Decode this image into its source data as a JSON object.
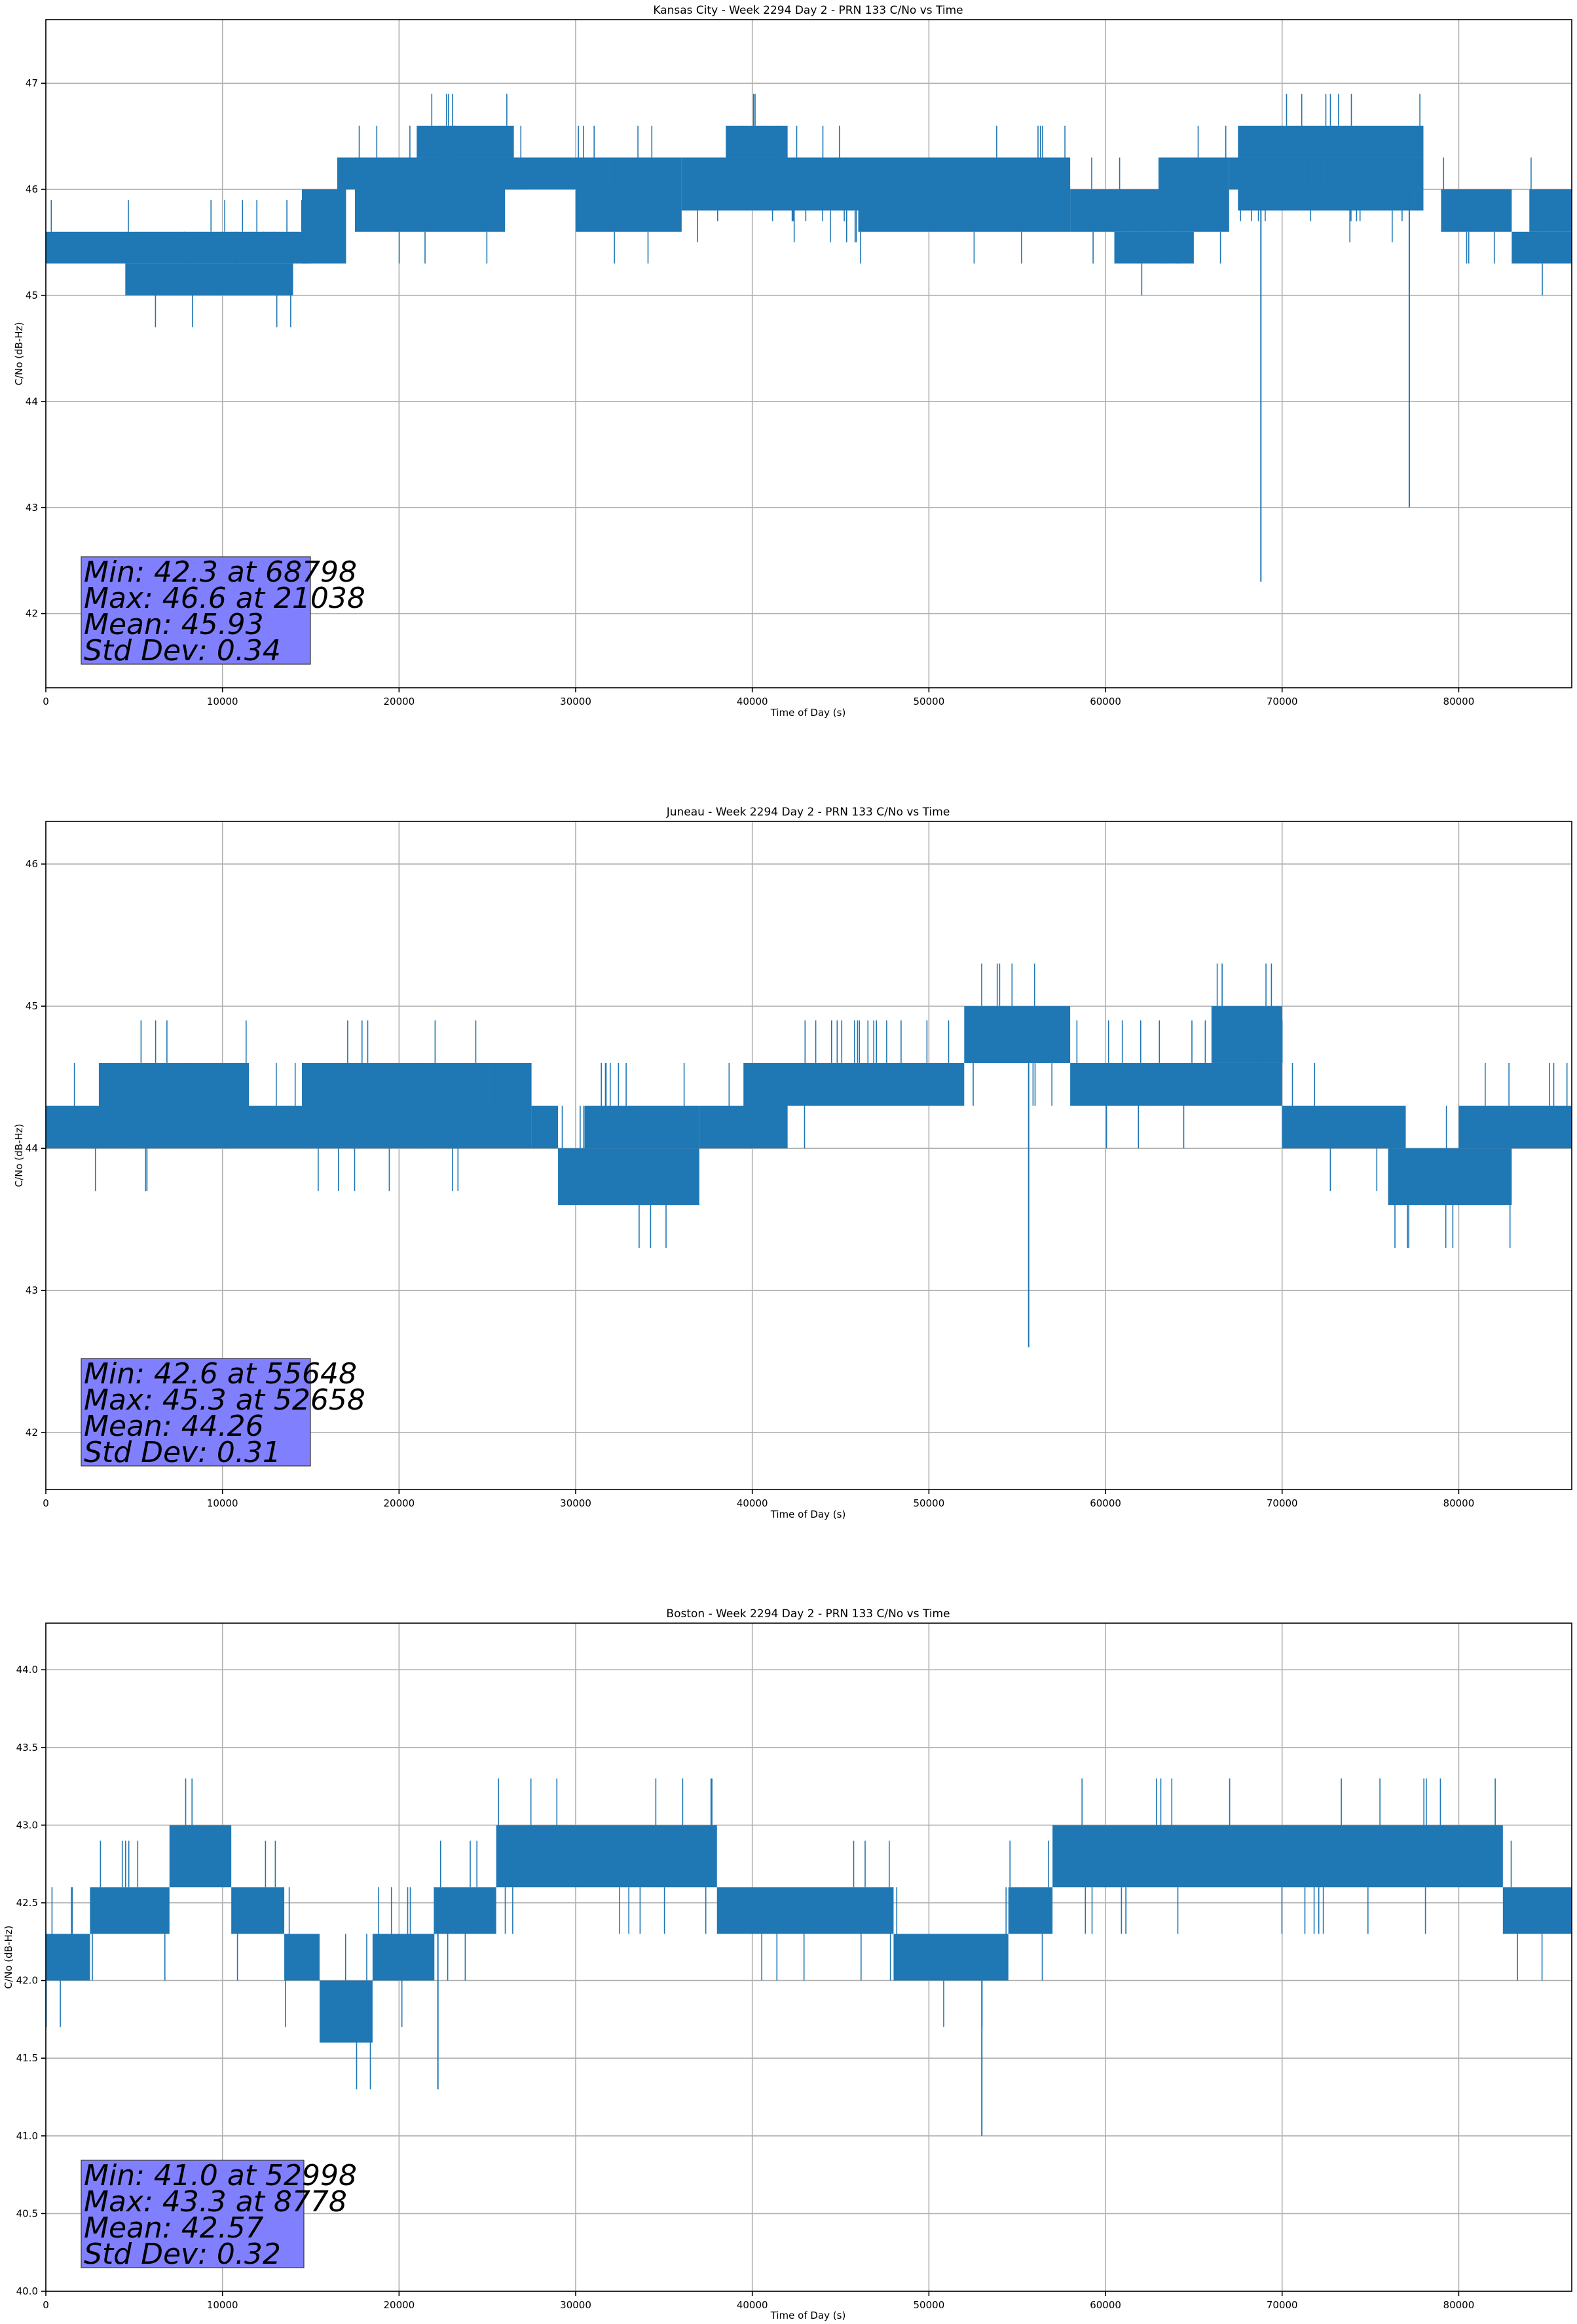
{
  "chart_data": [
    {
      "type": "line",
      "title": "Kansas City - Week 2294 Day 2 - PRN 133 C/No vs Time",
      "xlabel": "Time of Day (s)",
      "ylabel": "C/No (dB-Hz)",
      "xlim": [
        0,
        86400
      ],
      "ylim": [
        41.3,
        47.6
      ],
      "xticks": [
        0,
        10000,
        20000,
        30000,
        40000,
        50000,
        60000,
        70000,
        80000
      ],
      "yticks": [
        42,
        43,
        44,
        45,
        46,
        47
      ],
      "ytick_labels": [
        "42",
        "43",
        "44",
        "45",
        "46",
        "47"
      ],
      "grid": true,
      "series_color": "#1f77b4",
      "series": [
        {
          "segments": [
            [
              0,
              15000,
              45.3,
              45.6
            ],
            [
              4500,
              14000,
              45.0,
              45.3
            ],
            [
              14500,
              17000,
              45.3,
              46.0
            ],
            [
              16500,
              27000,
              46.0,
              46.3
            ],
            [
              17500,
              26000,
              45.6,
              46.0
            ],
            [
              21000,
              26500,
              46.3,
              46.6
            ],
            [
              26000,
              36000,
              46.0,
              46.3
            ],
            [
              30000,
              36000,
              45.6,
              46.0
            ],
            [
              36000,
              46000,
              46.0,
              46.3
            ],
            [
              36000,
              46000,
              45.8,
              46.0
            ],
            [
              38500,
              42000,
              46.3,
              46.6
            ],
            [
              46000,
              58000,
              45.6,
              46.3
            ],
            [
              58000,
              67000,
              45.6,
              46.0
            ],
            [
              60500,
              65000,
              45.3,
              45.6
            ],
            [
              63000,
              67000,
              46.0,
              46.3
            ],
            [
              67000,
              78000,
              46.0,
              46.3
            ],
            [
              67500,
              78000,
              45.8,
              46.0
            ],
            [
              67500,
              78000,
              46.3,
              46.6
            ],
            [
              79000,
              83000,
              45.6,
              46.0
            ],
            [
              83000,
              86400,
              45.3,
              45.6
            ],
            [
              84000,
              86400,
              45.6,
              46.0
            ]
          ],
          "spikes": [
            [
              68798,
              42.3
            ],
            [
              77200,
              43.0
            ]
          ]
        }
      ],
      "stats": {
        "min": "Min: 42.3 at 68798",
        "max": "Max: 46.6 at 21038",
        "mean": "Mean: 45.93",
        "std": "Std Dev: 0.34"
      }
    },
    {
      "type": "line",
      "title": "Juneau - Week 2294 Day 2 - PRN 133 C/No vs Time",
      "xlabel": "Time of Day (s)",
      "ylabel": "C/No (dB-Hz)",
      "xlim": [
        0,
        86400
      ],
      "ylim": [
        41.6,
        46.3
      ],
      "xticks": [
        0,
        10000,
        20000,
        30000,
        40000,
        50000,
        60000,
        70000,
        80000
      ],
      "yticks": [
        42,
        43,
        44,
        45,
        46
      ],
      "ytick_labels": [
        "42",
        "43",
        "44",
        "45",
        "46"
      ],
      "grid": true,
      "series_color": "#1f77b4",
      "series": [
        {
          "segments": [
            [
              0,
              14500,
              44.0,
              44.3
            ],
            [
              3000,
              11500,
              44.3,
              44.6
            ],
            [
              14500,
              27500,
              44.3,
              44.6
            ],
            [
              14500,
              27500,
              44.0,
              44.3
            ],
            [
              27500,
              29000,
              44.0,
              44.3
            ],
            [
              29000,
              37000,
              43.6,
              44.0
            ],
            [
              30500,
              37000,
              44.0,
              44.3
            ],
            [
              37000,
              42000,
              44.0,
              44.3
            ],
            [
              39500,
              52000,
              44.3,
              44.6
            ],
            [
              42000,
              52000,
              44.6,
              44.6
            ],
            [
              52000,
              58000,
              44.6,
              45.0
            ],
            [
              58000,
              70000,
              44.3,
              44.6
            ],
            [
              66000,
              70000,
              44.6,
              45.0
            ],
            [
              70000,
              77000,
              44.0,
              44.3
            ],
            [
              76000,
              83000,
              43.6,
              44.0
            ],
            [
              80000,
              86400,
              44.0,
              44.3
            ]
          ],
          "spikes": [
            [
              55648,
              42.6
            ]
          ]
        }
      ],
      "stats": {
        "min": "Min: 42.6 at 55648",
        "max": "Max: 45.3 at 52658",
        "mean": "Mean: 44.26",
        "std": "Std Dev: 0.31"
      }
    },
    {
      "type": "line",
      "title": "Boston - Week 2294 Day 2 - PRN 133 C/No vs Time",
      "xlabel": "Time of Day (s)",
      "ylabel": "C/No (dB-Hz)",
      "xlim": [
        0,
        86400
      ],
      "ylim": [
        40.0,
        44.3
      ],
      "xticks": [
        0,
        10000,
        20000,
        30000,
        40000,
        50000,
        60000,
        70000,
        80000
      ],
      "yticks": [
        40.0,
        40.5,
        41.0,
        41.5,
        42.0,
        42.5,
        43.0,
        43.5,
        44.0
      ],
      "ytick_labels": [
        "40.0",
        "40.5",
        "41.0",
        "41.5",
        "42.0",
        "42.5",
        "43.0",
        "43.5",
        "44.0"
      ],
      "grid": true,
      "series_color": "#1f77b4",
      "series": [
        {
          "segments": [
            [
              0,
              2500,
              42.0,
              42.3
            ],
            [
              2500,
              7000,
              42.3,
              42.6
            ],
            [
              7000,
              10500,
              42.6,
              43.0
            ],
            [
              10500,
              13500,
              42.3,
              42.6
            ],
            [
              13500,
              15500,
              42.0,
              42.3
            ],
            [
              15500,
              18500,
              41.6,
              42.0
            ],
            [
              18500,
              22000,
              42.0,
              42.3
            ],
            [
              22000,
              25500,
              42.3,
              42.6
            ],
            [
              25500,
              38000,
              42.6,
              43.0
            ],
            [
              38000,
              48000,
              42.3,
              42.6
            ],
            [
              48000,
              54500,
              42.0,
              42.3
            ],
            [
              54500,
              57000,
              42.3,
              42.6
            ],
            [
              57000,
              82500,
              42.6,
              43.0
            ],
            [
              82500,
              86400,
              42.3,
              42.6
            ]
          ],
          "spikes": [
            [
              52998,
              41.0
            ],
            [
              22200,
              41.3
            ]
          ]
        }
      ],
      "stats": {
        "min": "Min: 41.0 at 52998",
        "max": "Max: 43.3 at 8778",
        "mean": "Mean: 42.57",
        "std": "Std Dev: 0.32"
      }
    }
  ]
}
